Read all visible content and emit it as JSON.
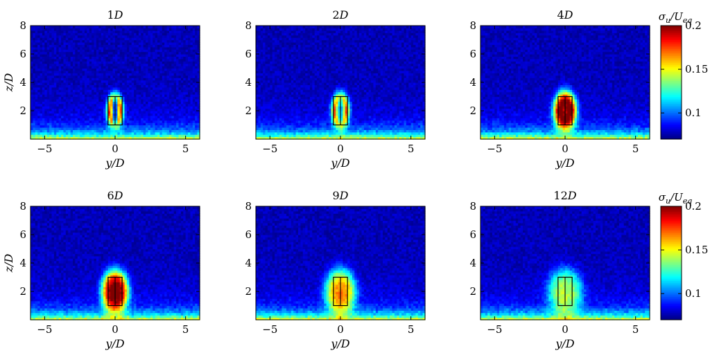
{
  "chart_data": {
    "type": "heatmap",
    "colormap": "jet",
    "colorbar_label": "σu/Ueq",
    "colorbar": {
      "ticks": [
        "0.1",
        "0.15",
        "0.2"
      ],
      "tick_values": [
        0.1,
        0.15,
        0.2
      ],
      "range": [
        0.07,
        0.2
      ]
    },
    "xlim": [
      -6,
      6
    ],
    "ylim": [
      0,
      8
    ],
    "xticks": [
      -5,
      0,
      5
    ],
    "yticks": [
      2,
      4,
      6,
      8
    ],
    "xlabel": "y/D",
    "ylabel": "z/D",
    "panels": [
      {
        "title": "1D",
        "peak": 0.22,
        "ring": 0.35,
        "core_w": 0.28,
        "core_h": 1.05,
        "blob_w": 0.55,
        "blob_h": 1.15
      },
      {
        "title": "2D",
        "peak": 0.21,
        "ring": 0.3,
        "core_w": 0.32,
        "core_h": 1.0,
        "blob_w": 0.6,
        "blob_h": 1.2
      },
      {
        "title": "4D",
        "peak": 0.215,
        "ring": 0.12,
        "core_w": 0.1,
        "core_h": 0.75,
        "blob_w": 0.8,
        "blob_h": 1.35
      },
      {
        "title": "6D",
        "peak": 0.2,
        "ring": 0.0,
        "core_w": 0.0,
        "core_h": 0.0,
        "blob_w": 0.95,
        "blob_h": 1.5
      },
      {
        "title": "9D",
        "peak": 0.16,
        "ring": 0.0,
        "core_w": 0.0,
        "core_h": 0.0,
        "blob_w": 1.1,
        "blob_h": 1.6
      },
      {
        "title": "12D",
        "peak": 0.135,
        "ring": 0.0,
        "core_w": 0.0,
        "core_h": 0.0,
        "blob_w": 1.25,
        "blob_h": 1.65
      }
    ],
    "model_outline": {
      "x": [
        -0.5,
        0.5
      ],
      "z": [
        1,
        3
      ],
      "divider_x": 0
    }
  }
}
